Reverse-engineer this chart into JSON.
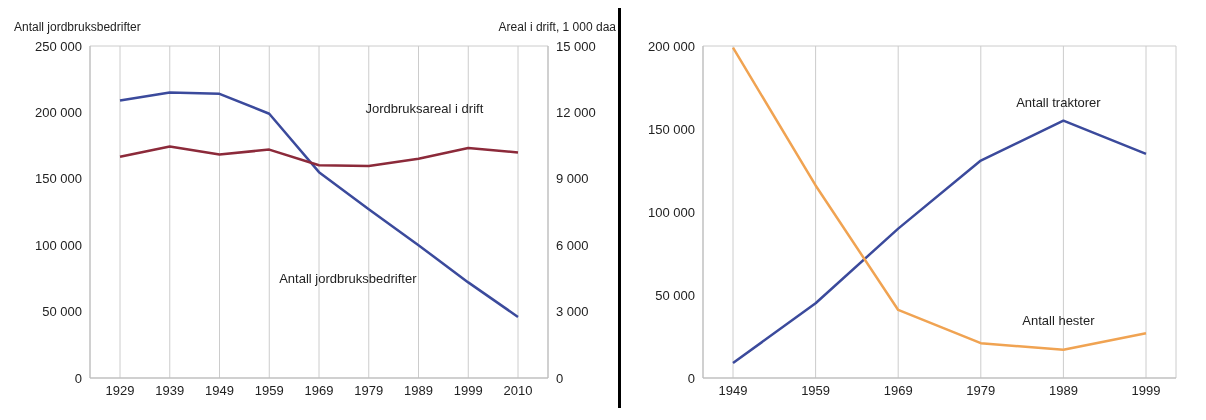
{
  "chart_data": [
    {
      "type": "line",
      "ylabel": "Antall jordbruksbedrifter",
      "y2label": "Areal i drift, 1 000 daa",
      "categories": [
        "1929",
        "1939",
        "1949",
        "1959",
        "1969",
        "1979",
        "1989",
        "1999",
        "2010"
      ],
      "series": [
        {
          "name": "Antall jordbruksbedrifter",
          "color": "#3b4a9c",
          "values": [
            209000,
            215000,
            214000,
            199000,
            155000,
            127000,
            100000,
            72000,
            46000
          ]
        },
        {
          "name": "Jordbruksareal i drift",
          "color": "#8c2a3a",
          "axis": "y2",
          "values": [
            10000,
            10460,
            10100,
            10320,
            9610,
            9580,
            9910,
            10390,
            10190
          ]
        }
      ],
      "ylim": [
        0,
        250000
      ],
      "yticks": [
        {
          "value": 0,
          "label": "0"
        },
        {
          "value": 50000,
          "label": "50 000"
        },
        {
          "value": 100000,
          "label": "100 000"
        },
        {
          "value": 150000,
          "label": "150 000"
        },
        {
          "value": 200000,
          "label": "200 000"
        },
        {
          "value": 250000,
          "label": "250 000"
        }
      ],
      "y2lim": [
        0,
        15000
      ],
      "y2ticks": [
        {
          "value": 0,
          "label": "0"
        },
        {
          "value": 3000,
          "label": "3 000"
        },
        {
          "value": 6000,
          "label": "6 000"
        },
        {
          "value": 9000,
          "label": "9 000"
        },
        {
          "value": 12000,
          "label": "12 000"
        },
        {
          "value": 15000,
          "label": "15 000"
        }
      ],
      "grid": true,
      "marker": "none"
    },
    {
      "type": "line",
      "categories": [
        "1949",
        "1959",
        "1969",
        "1979",
        "1989",
        "1999"
      ],
      "series": [
        {
          "name": "Antall traktorer",
          "color": "#3b4a9c",
          "values": [
            9000,
            45000,
            90000,
            131000,
            155000,
            135000
          ]
        },
        {
          "name": "Antall hester",
          "color": "#f0a352",
          "values": [
            199000,
            116000,
            41000,
            21000,
            17000,
            27000
          ]
        }
      ],
      "ylim": [
        0,
        200000
      ],
      "yticks": [
        {
          "value": 0,
          "label": "0"
        },
        {
          "value": 50000,
          "label": "50 000"
        },
        {
          "value": 100000,
          "label": "100 000"
        },
        {
          "value": 150000,
          "label": "150 000"
        },
        {
          "value": 200000,
          "label": "200 000"
        }
      ],
      "grid": true,
      "marker": "none"
    }
  ]
}
